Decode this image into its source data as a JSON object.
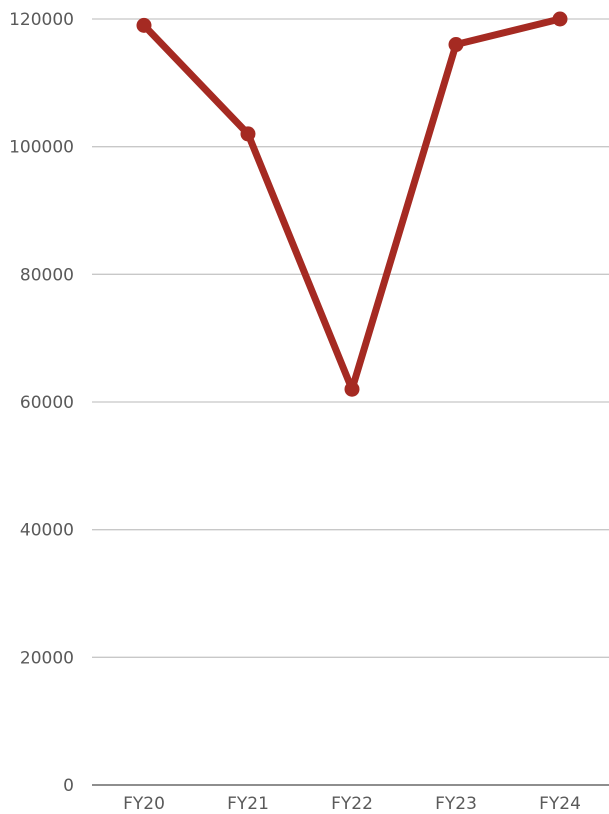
{
  "chart_data": {
    "type": "line",
    "categories": [
      "FY20",
      "FY21",
      "FY22",
      "FY23",
      "FY24"
    ],
    "series": [
      {
        "values": [
          119000,
          102000,
          62000,
          116000,
          120000
        ]
      }
    ],
    "ylim": [
      0,
      120000
    ],
    "yticks": [
      "0",
      "20000",
      "40000",
      "60000",
      "80000",
      "100000",
      "120000"
    ],
    "grid": true,
    "legend": "none",
    "title": "",
    "xlabel": "",
    "ylabel": "",
    "colors": {
      "series": "#a52a22",
      "grid": "#c8c8c8",
      "axis": "#4a4a4a",
      "text": "#5a5a5a"
    }
  }
}
